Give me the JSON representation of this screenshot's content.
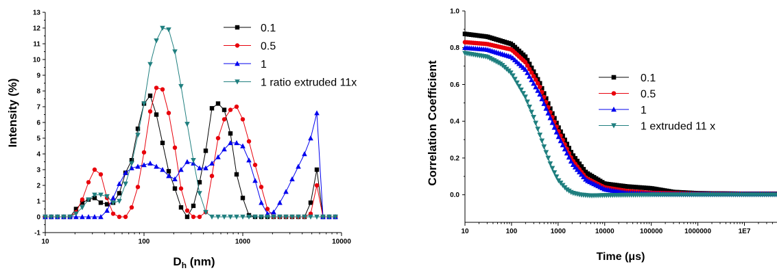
{
  "chart_data": [
    {
      "type": "line",
      "title": "",
      "xlabel": "D",
      "xlabel_sub": "h",
      "xlabel_unit": " (nm)",
      "ylabel": "Intensity (%)",
      "xscale": "log",
      "xlim": [
        10,
        10000
      ],
      "ylim": [
        -1,
        13
      ],
      "xticks": [
        10,
        100,
        1000,
        10000
      ],
      "xtick_labels": [
        "10",
        "100",
        "1000",
        "10000"
      ],
      "yticks": [
        -1,
        0,
        1,
        2,
        3,
        4,
        5,
        6,
        7,
        8,
        9,
        10,
        11,
        12,
        13
      ],
      "ytick_labels": [
        "-1",
        "0",
        "1",
        "2",
        "3",
        "4",
        "5",
        "6",
        "7",
        "8",
        "9",
        "10",
        "11",
        "12",
        "13"
      ],
      "legend_position": "top-right",
      "series": [
        {
          "name": "0.1",
          "color": "#000000",
          "marker": "square",
          "x": [
            10,
            11.5,
            13.3,
            15.4,
            17.8,
            20.5,
            23.7,
            27.4,
            31.6,
            36.5,
            42.2,
            48.7,
            56.2,
            65,
            75,
            86.6,
            100,
            115.5,
            133.4,
            154,
            177.8,
            205.4,
            237.1,
            273.8,
            316.2,
            365.2,
            421.7,
            487,
            562.3,
            649.4,
            749.9,
            866,
            1000,
            1154.8,
            1333.5,
            1539.9,
            1778.3,
            2053.5,
            2371.4,
            2738.4,
            3162.3,
            3651.7,
            4217,
            4869.7,
            5623.4,
            6493.8,
            7498.9,
            8659.6
          ],
          "y": [
            0,
            0,
            0,
            0,
            0,
            0.5,
            0.9,
            1.1,
            1.2,
            0.9,
            0.8,
            0.9,
            1.5,
            2.8,
            3.6,
            5.6,
            7.2,
            7.7,
            6.5,
            4.7,
            2.9,
            1.8,
            0.6,
            0,
            0.7,
            2.2,
            4.2,
            6.9,
            7.2,
            6.8,
            5.3,
            2.7,
            1.2,
            0.1,
            0,
            0,
            0,
            0,
            0,
            0,
            0,
            0,
            0,
            0.9,
            3.0,
            0,
            0,
            0
          ]
        },
        {
          "name": "0.5",
          "color": "#e8000b",
          "marker": "circle",
          "x": [
            10,
            11.5,
            13.3,
            15.4,
            17.8,
            20.5,
            23.7,
            27.4,
            31.6,
            36.5,
            42.2,
            48.7,
            56.2,
            65,
            75,
            86.6,
            100,
            115.5,
            133.4,
            154,
            177.8,
            205.4,
            237.1,
            273.8,
            316.2,
            365.2,
            421.7,
            487,
            562.3,
            649.4,
            749.9,
            866,
            1000,
            1154.8,
            1333.5,
            1539.9,
            1778.3,
            2053.5,
            2371.4,
            2738.4,
            3162.3,
            3651.7,
            4217,
            4869.7,
            5623.4,
            6493.8,
            7498.9,
            8659.6
          ],
          "y": [
            0,
            0,
            0,
            0,
            0,
            0.3,
            1.1,
            2.2,
            3.0,
            2.7,
            1.2,
            0.2,
            0,
            0,
            0.6,
            1.9,
            4.1,
            6.7,
            8.2,
            8.1,
            6.6,
            4.4,
            1.8,
            0.4,
            0,
            0,
            0.3,
            2.6,
            5.0,
            6.2,
            6.8,
            7.0,
            6.2,
            4.8,
            3.3,
            1.9,
            0.5,
            0,
            0,
            0,
            0,
            0,
            0,
            0.2,
            2.0,
            0,
            0,
            0
          ]
        },
        {
          "name": "1",
          "color": "#0000ee",
          "marker": "triangle-up",
          "x": [
            10,
            11.5,
            13.3,
            15.4,
            17.8,
            20.5,
            23.7,
            27.4,
            31.6,
            36.5,
            42.2,
            48.7,
            56.2,
            65,
            75,
            86.6,
            100,
            115.5,
            133.4,
            154,
            177.8,
            205.4,
            237.1,
            273.8,
            316.2,
            365.2,
            421.7,
            487,
            562.3,
            649.4,
            749.9,
            866,
            1000,
            1154.8,
            1333.5,
            1539.9,
            1778.3,
            2053.5,
            2371.4,
            2738.4,
            3162.3,
            3651.7,
            4217,
            4869.7,
            5623.4,
            6493.8,
            7498.9,
            8659.6
          ],
          "y": [
            0,
            0,
            0,
            0,
            0,
            0,
            0,
            0,
            0,
            0,
            0.4,
            1.2,
            2.1,
            2.8,
            3.1,
            3.2,
            3.3,
            3.4,
            3.2,
            3.0,
            2.6,
            2.4,
            3.0,
            3.5,
            3.4,
            3.1,
            3.1,
            3.4,
            3.8,
            4.3,
            4.7,
            4.7,
            4.5,
            3.6,
            2.3,
            0.9,
            0.2,
            0.3,
            0.9,
            1.6,
            2.4,
            3.2,
            4.0,
            5.0,
            6.6,
            0,
            0,
            0
          ]
        },
        {
          "name": "1 ratio extruded 11x",
          "color": "#1f7f7f",
          "marker": "triangle-down",
          "x": [
            10,
            11.5,
            13.3,
            15.4,
            17.8,
            20.5,
            23.7,
            27.4,
            31.6,
            36.5,
            42.2,
            48.7,
            56.2,
            65,
            75,
            86.6,
            100,
            115.5,
            133.4,
            154,
            177.8,
            205.4,
            237.1,
            273.8,
            316.2,
            365.2,
            421.7,
            487,
            562.3,
            649.4,
            749.9,
            866,
            1000,
            1154.8,
            1333.5,
            1539.9,
            1778.3,
            2053.5,
            2371.4,
            2738.4,
            3162.3,
            3651.7,
            4217,
            4869.7,
            5623.4,
            6493.8,
            7498.9,
            8659.6
          ],
          "y": [
            0,
            0,
            0,
            0,
            0,
            0.2,
            0.6,
            1.1,
            1.4,
            1.4,
            1.3,
            0.9,
            1.0,
            2.1,
            3.4,
            5.2,
            7.2,
            9.7,
            11.2,
            12.0,
            11.9,
            10.5,
            8.3,
            5.9,
            3.6,
            1.5,
            0.3,
            0,
            0,
            0,
            0,
            0,
            0,
            0,
            0,
            0,
            0,
            0,
            0,
            0,
            0,
            0,
            0,
            0,
            0,
            0,
            0,
            0
          ]
        }
      ]
    },
    {
      "type": "line",
      "title": "",
      "xlabel": "Time (",
      "xlabel_mu": "μ",
      "xlabel_unit": "s)",
      "ylabel": "Correlation Coefficient",
      "xscale": "log",
      "xlim": [
        10,
        50000000
      ],
      "ylim": [
        -0.15,
        1.0
      ],
      "xticks": [
        10,
        100,
        1000,
        10000,
        100000,
        1000000,
        10000000
      ],
      "xtick_labels": [
        "10",
        "100",
        "1000",
        "10000",
        "100000",
        "1000000",
        "1E7"
      ],
      "yticks": [
        0.0,
        0.2,
        0.4,
        0.6,
        0.8,
        1.0
      ],
      "ytick_labels": [
        "0.0",
        "0.2",
        "0.4",
        "0.6",
        "0.8",
        "1.0"
      ],
      "legend_position": "center-right",
      "series": [
        {
          "name": "0.1",
          "color": "#000000",
          "marker": "square",
          "x": [
            10,
            30,
            100,
            200,
            400,
            700,
            1000,
            2000,
            4000,
            10000,
            30000,
            100000,
            300000,
            1000000,
            10000000,
            50000000
          ],
          "y": [
            0.875,
            0.86,
            0.82,
            0.75,
            0.61,
            0.46,
            0.37,
            0.22,
            0.12,
            0.06,
            0.045,
            0.035,
            0.015,
            0.008,
            0.005,
            0.005
          ]
        },
        {
          "name": "0.5",
          "color": "#e8000b",
          "marker": "circle",
          "x": [
            10,
            30,
            100,
            200,
            400,
            700,
            1000,
            2000,
            4000,
            10000,
            30000,
            100000,
            300000,
            1000000,
            10000000,
            50000000
          ],
          "y": [
            0.83,
            0.82,
            0.79,
            0.72,
            0.59,
            0.44,
            0.35,
            0.19,
            0.09,
            0.04,
            0.02,
            0.01,
            0.008,
            0.005,
            0.004,
            0.004
          ]
        },
        {
          "name": "1",
          "color": "#0000ee",
          "marker": "triangle-up",
          "x": [
            10,
            30,
            100,
            200,
            400,
            700,
            1000,
            2000,
            4000,
            10000,
            30000,
            100000,
            300000,
            1000000,
            10000000,
            50000000
          ],
          "y": [
            0.8,
            0.79,
            0.75,
            0.68,
            0.55,
            0.41,
            0.32,
            0.17,
            0.08,
            0.03,
            0.01,
            0.005,
            0.004,
            0.004,
            0.004,
            0.004
          ]
        },
        {
          "name": " 1 extruded 11 x",
          "color": "#1f7f7f",
          "marker": "triangle-down",
          "x": [
            10,
            30,
            60,
            100,
            200,
            300,
            500,
            700,
            1000,
            1500,
            2000,
            3000,
            5000,
            10000,
            100000,
            1000000,
            10000000,
            50000000
          ],
          "y": [
            0.77,
            0.75,
            0.71,
            0.66,
            0.53,
            0.42,
            0.26,
            0.16,
            0.08,
            0.03,
            0.01,
            0.0,
            -0.005,
            -0.003,
            0.0,
            0.0,
            0.0,
            0.0
          ]
        }
      ]
    }
  ]
}
